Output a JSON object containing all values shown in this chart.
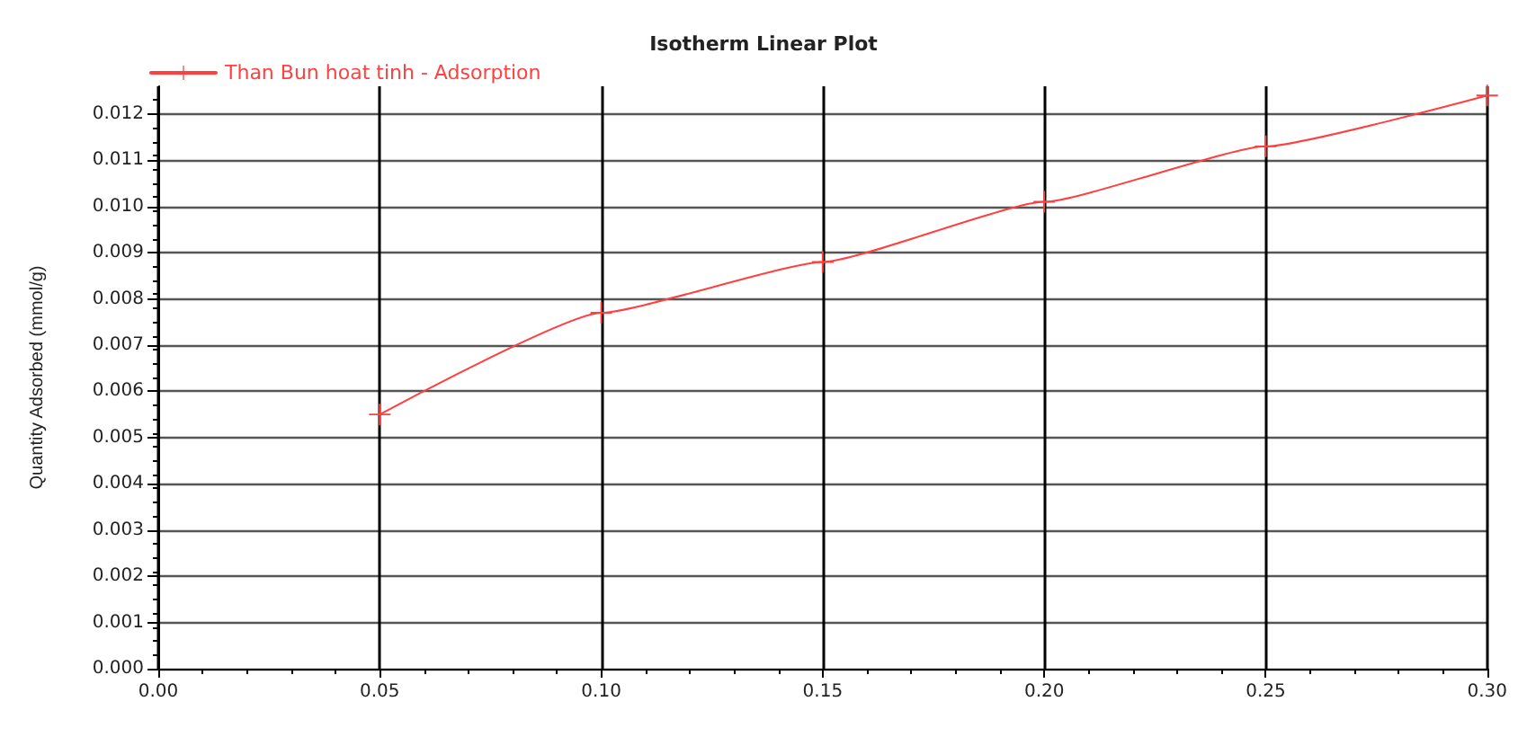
{
  "chart_data": {
    "type": "line",
    "title": "Isotherm Linear Plot",
    "ylabel": "Quantity Adsorbed (mmol/g)",
    "x": [
      0.05,
      0.1,
      0.15,
      0.2,
      0.25,
      0.3
    ],
    "series": [
      {
        "name": "Than Bun hoat tinh - Adsorption",
        "color": "#ff4040",
        "values": [
          0.0055,
          0.0077,
          0.0088,
          0.0101,
          0.0113,
          0.0124
        ]
      }
    ],
    "xlim": [
      0,
      0.3
    ],
    "xticks": [
      {
        "value": 0,
        "label": "0.00"
      },
      0.05,
      {
        "value": 0.1,
        "label": "0.10"
      },
      0.15,
      {
        "value": 0.2,
        "label": "0.20"
      },
      0.25,
      {
        "value": 0.3,
        "label": "0.30"
      }
    ],
    "ylim": [
      0,
      0.0126
    ],
    "yticks": [
      {
        "value": 0,
        "label": "0.000"
      },
      0.001,
      0.002,
      0.003,
      0.004,
      0.005,
      0.006,
      0.007,
      0.008,
      0.009,
      {
        "value": 0.01,
        "label": "0.010"
      },
      0.011,
      0.012
    ],
    "grid": true,
    "legend": "top left",
    "marker": "cross",
    "line_style": "solid"
  }
}
